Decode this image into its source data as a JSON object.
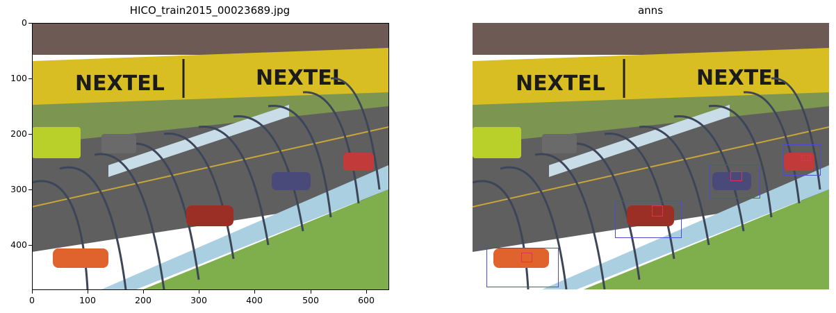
{
  "left_panel": {
    "title": "HICO_train2015_00023689.jpg",
    "x_ticks": [
      "0",
      "100",
      "200",
      "300",
      "400",
      "500",
      "600"
    ],
    "y_ticks": [
      "0",
      "100",
      "200",
      "300",
      "400"
    ],
    "sign_text_1": "NEXTEL",
    "sign_text_2": "NEXTEL"
  },
  "right_panel": {
    "title": "anns",
    "sign_text_1": "NEXTEL",
    "sign_text_2": "NEXTEL"
  },
  "colors": {
    "person_box": "#4b4bd8",
    "object_box": "#e0305a"
  }
}
